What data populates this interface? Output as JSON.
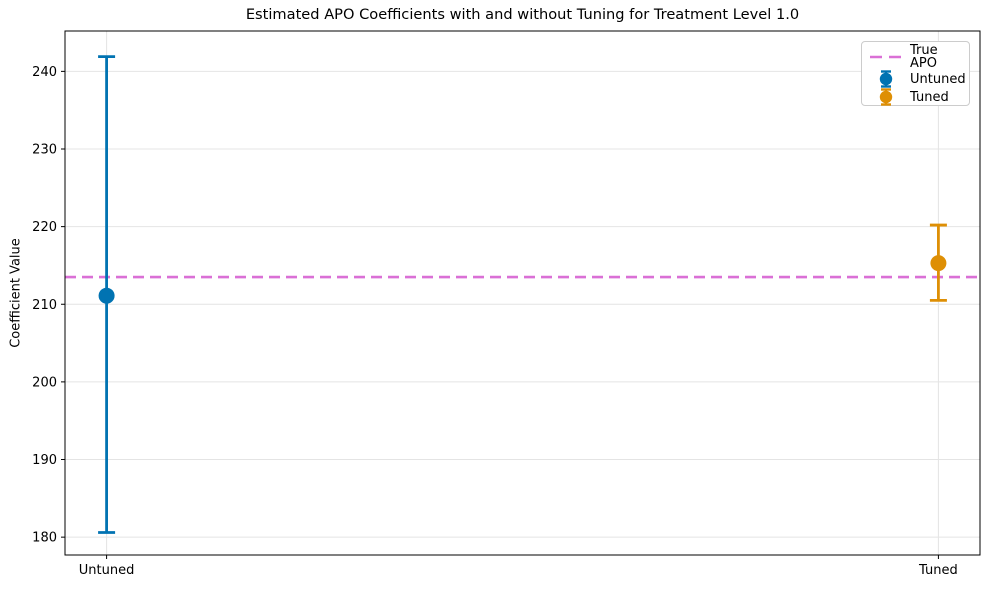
{
  "chart_data": {
    "type": "scatter",
    "title": "Estimated APO Coefficients with and without Tuning for Treatment Level 1.0",
    "xlabel": "",
    "ylabel": "Coefficient Value",
    "categories": [
      "Untuned",
      "Tuned"
    ],
    "x_positions": [
      0,
      1
    ],
    "xlim": [
      -0.05,
      1.05
    ],
    "ylim": [
      177.7,
      245.2
    ],
    "yticks": [
      180,
      190,
      200,
      210,
      220,
      230,
      240
    ],
    "grid": true,
    "legend_position": "upper right",
    "series": [
      {
        "name": "Untuned",
        "x": 0,
        "value": 211.1,
        "ci_lower": 180.6,
        "ci_upper": 241.9,
        "color": "#0173b2",
        "marker": "circle"
      },
      {
        "name": "Tuned",
        "x": 1,
        "value": 215.3,
        "ci_lower": 210.5,
        "ci_upper": 220.2,
        "color": "#de8f05",
        "marker": "circle"
      }
    ],
    "reference_line": {
      "label": "True APO",
      "value": 213.5,
      "color": "#da70d6",
      "style": "dashed"
    },
    "legend_entries": [
      {
        "label": "True APO",
        "glyph": "dashed-line",
        "color": "#da70d6"
      },
      {
        "label": "Untuned",
        "glyph": "errorbar-marker",
        "color": "#0173b2"
      },
      {
        "label": "Tuned",
        "glyph": "errorbar-marker",
        "color": "#de8f05"
      }
    ],
    "colors": {
      "grid": "#e4e4e4",
      "spine": "#000000",
      "text": "#000000"
    }
  }
}
